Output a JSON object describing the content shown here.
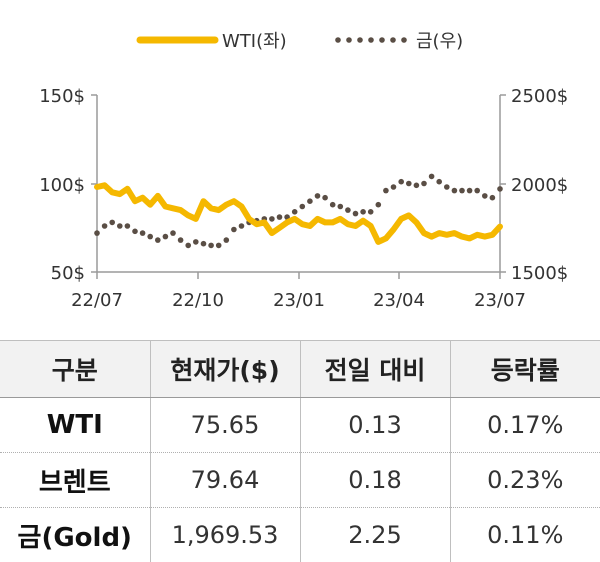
{
  "chart_data": {
    "type": "line",
    "legend": {
      "placement": "top",
      "entries": [
        "WTI(좌)",
        "금(우)"
      ]
    },
    "x_ticks": [
      "22/07",
      "22/10",
      "23/01",
      "23/04",
      "23/07"
    ],
    "y_left": {
      "ticks": [
        "50$",
        "100$",
        "150$"
      ],
      "range": [
        50,
        150
      ]
    },
    "y_right": {
      "ticks": [
        "1500$",
        "2000$",
        "2500$"
      ],
      "range": [
        1500,
        2500
      ]
    },
    "grid": false,
    "colors": {
      "wti": "#F5B800",
      "gold": "#5a4e45"
    },
    "series": [
      {
        "name": "WTI(좌)",
        "axis": "left",
        "style": "solid",
        "x": [
          "2022-07-01",
          "2022-07-08",
          "2022-07-15",
          "2022-07-22",
          "2022-07-29",
          "2022-08-05",
          "2022-08-12",
          "2022-08-19",
          "2022-08-26",
          "2022-09-02",
          "2022-09-09",
          "2022-09-16",
          "2022-09-23",
          "2022-09-30",
          "2022-10-07",
          "2022-10-14",
          "2022-10-21",
          "2022-10-28",
          "2022-11-04",
          "2022-11-11",
          "2022-11-18",
          "2022-11-25",
          "2022-12-02",
          "2022-12-09",
          "2022-12-16",
          "2022-12-23",
          "2022-12-30",
          "2023-01-06",
          "2023-01-13",
          "2023-01-20",
          "2023-01-27",
          "2023-02-03",
          "2023-02-10",
          "2023-02-17",
          "2023-02-24",
          "2023-03-03",
          "2023-03-10",
          "2023-03-17",
          "2023-03-24",
          "2023-03-31",
          "2023-04-07",
          "2023-04-14",
          "2023-04-21",
          "2023-04-28",
          "2023-05-05",
          "2023-05-12",
          "2023-05-19",
          "2023-05-26",
          "2023-06-02",
          "2023-06-09",
          "2023-06-16",
          "2023-06-23",
          "2023-06-30",
          "2023-07-07"
        ],
        "values": [
          98,
          99,
          95,
          94,
          97,
          90,
          92,
          88,
          93,
          87,
          86,
          85,
          82,
          80,
          90,
          86,
          85,
          88,
          90,
          87,
          80,
          77,
          78,
          72,
          75,
          78,
          80,
          77,
          76,
          80,
          78,
          78,
          80,
          77,
          76,
          79,
          76,
          67,
          69,
          74,
          80,
          82,
          78,
          72,
          70,
          72,
          71,
          72,
          70,
          69,
          71,
          70,
          71,
          75.65
        ]
      },
      {
        "name": "금(우)",
        "axis": "right",
        "style": "dotted",
        "x": [
          "2022-07-01",
          "2022-07-08",
          "2022-07-15",
          "2022-07-22",
          "2022-07-29",
          "2022-08-05",
          "2022-08-12",
          "2022-08-19",
          "2022-08-26",
          "2022-09-02",
          "2022-09-09",
          "2022-09-16",
          "2022-09-23",
          "2022-09-30",
          "2022-10-07",
          "2022-10-14",
          "2022-10-21",
          "2022-10-28",
          "2022-11-04",
          "2022-11-11",
          "2022-11-18",
          "2022-11-25",
          "2022-12-02",
          "2022-12-09",
          "2022-12-16",
          "2022-12-23",
          "2022-12-30",
          "2023-01-06",
          "2023-01-13",
          "2023-01-20",
          "2023-01-27",
          "2023-02-03",
          "2023-02-10",
          "2023-02-17",
          "2023-02-24",
          "2023-03-03",
          "2023-03-10",
          "2023-03-17",
          "2023-03-24",
          "2023-03-31",
          "2023-04-07",
          "2023-04-14",
          "2023-04-21",
          "2023-04-28",
          "2023-05-05",
          "2023-05-12",
          "2023-05-19",
          "2023-05-26",
          "2023-06-02",
          "2023-06-09",
          "2023-06-16",
          "2023-06-23",
          "2023-06-30",
          "2023-07-07"
        ],
        "values": [
          1720,
          1760,
          1780,
          1760,
          1760,
          1730,
          1720,
          1700,
          1680,
          1700,
          1720,
          1680,
          1650,
          1670,
          1660,
          1650,
          1650,
          1680,
          1740,
          1760,
          1780,
          1790,
          1800,
          1800,
          1810,
          1810,
          1840,
          1870,
          1900,
          1930,
          1920,
          1880,
          1870,
          1850,
          1830,
          1840,
          1840,
          1880,
          1960,
          1980,
          2010,
          2000,
          1990,
          2000,
          2040,
          2010,
          1980,
          1960,
          1960,
          1960,
          1960,
          1930,
          1920,
          1969.53
        ]
      }
    ]
  },
  "table": {
    "headers": [
      "구분",
      "현재가($)",
      "전일 대비",
      "등락률"
    ],
    "rows": [
      {
        "label": "WTI",
        "price": "75.65",
        "change": "0.13",
        "rate": "0.17%"
      },
      {
        "label": "브렌트",
        "price": "79.64",
        "change": "0.18",
        "rate": "0.23%"
      },
      {
        "label": "금(Gold)",
        "price": "1,969.53",
        "change": "2.25",
        "rate": "0.11%"
      }
    ]
  }
}
